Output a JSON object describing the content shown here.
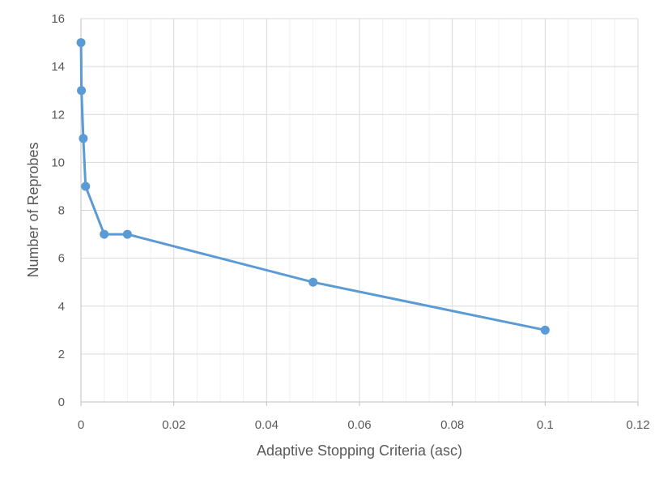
{
  "chart_data": {
    "type": "scatter",
    "title": "",
    "xlabel": "Adaptive Stopping Criteria (asc)",
    "ylabel": "Number of Reprobes",
    "xlim": [
      0,
      0.12
    ],
    "ylim": [
      0,
      16
    ],
    "x_major_ticks": [
      0,
      0.02,
      0.04,
      0.06,
      0.08,
      0.1,
      0.12
    ],
    "x_tick_labels": [
      "0",
      "0.02",
      "0.04",
      "0.06",
      "0.08",
      "0.1",
      "0.12"
    ],
    "x_minor_step": 0.005,
    "y_major_ticks": [
      0,
      2,
      4,
      6,
      8,
      10,
      12,
      14,
      16
    ],
    "y_tick_labels": [
      "0",
      "2",
      "4",
      "6",
      "8",
      "10",
      "12",
      "14",
      "16"
    ],
    "grid": true,
    "legend": "none",
    "series": [
      {
        "color": "#5b9bd5",
        "lines": true,
        "markers": true,
        "x": [
          1e-05,
          0.0001,
          0.0005,
          0.001,
          0.005,
          0.01,
          0.05,
          0.1
        ],
        "y": [
          15,
          13,
          11,
          9,
          7,
          7,
          5,
          3
        ]
      }
    ]
  }
}
